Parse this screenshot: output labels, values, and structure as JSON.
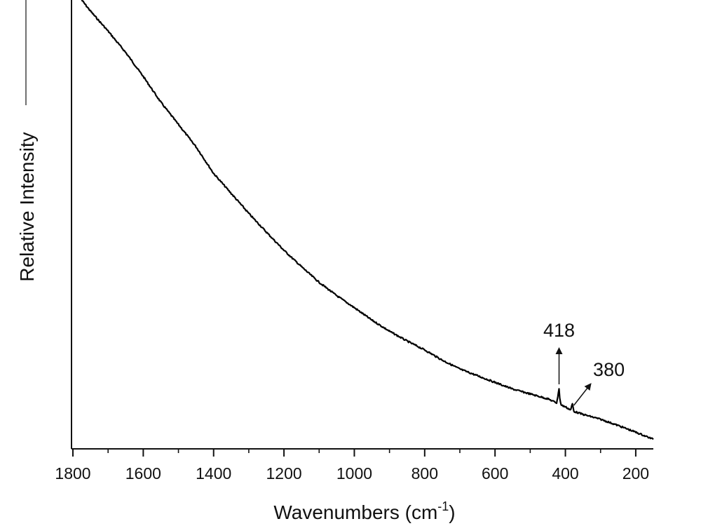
{
  "chart_data": {
    "type": "line",
    "xlabel_main": "Wavenumbers (cm",
    "xlabel_sup": "-1",
    "xlabel_close": ")",
    "ylabel": "Relative Intensity",
    "xlim": [
      1800,
      150
    ],
    "x_reversed": true,
    "x_ticks": [
      {
        "value": 1800,
        "label": "1800"
      },
      {
        "value": 1600,
        "label": "1600"
      },
      {
        "value": 1400,
        "label": "1400"
      },
      {
        "value": 1200,
        "label": "1200"
      },
      {
        "value": 1000,
        "label": "1000"
      },
      {
        "value": 800,
        "label": "800"
      },
      {
        "value": 600,
        "label": "600"
      },
      {
        "value": 400,
        "label": "400"
      },
      {
        "value": 200,
        "label": "200"
      }
    ],
    "x_minor_ticks": [
      1700,
      1500,
      1300,
      1100,
      900,
      700,
      500,
      300
    ],
    "series": [
      {
        "color": "#000000",
        "points": [
          [
            1775,
            1.0
          ],
          [
            1750,
            0.975
          ],
          [
            1700,
            0.93
          ],
          [
            1650,
            0.882
          ],
          [
            1600,
            0.828
          ],
          [
            1550,
            0.77
          ],
          [
            1500,
            0.72
          ],
          [
            1450,
            0.67
          ],
          [
            1400,
            0.61
          ],
          [
            1350,
            0.565
          ],
          [
            1300,
            0.52
          ],
          [
            1250,
            0.478
          ],
          [
            1200,
            0.437
          ],
          [
            1150,
            0.4
          ],
          [
            1100,
            0.365
          ],
          [
            1050,
            0.335
          ],
          [
            1000,
            0.308
          ],
          [
            950,
            0.28
          ],
          [
            900,
            0.255
          ],
          [
            850,
            0.233
          ],
          [
            800,
            0.213
          ],
          [
            750,
            0.19
          ],
          [
            700,
            0.17
          ],
          [
            650,
            0.155
          ],
          [
            600,
            0.14
          ],
          [
            550,
            0.125
          ],
          [
            500,
            0.114
          ],
          [
            450,
            0.103
          ],
          [
            425,
            0.094
          ],
          [
            420,
            0.115
          ],
          [
            418,
            0.127
          ],
          [
            416,
            0.105
          ],
          [
            412,
            0.089
          ],
          [
            400,
            0.085
          ],
          [
            385,
            0.078
          ],
          [
            380,
            0.092
          ],
          [
            376,
            0.075
          ],
          [
            350,
            0.068
          ],
          [
            300,
            0.057
          ],
          [
            250,
            0.043
          ],
          [
            200,
            0.028
          ],
          [
            150,
            0.012
          ]
        ]
      }
    ],
    "annotations": [
      {
        "label": "418",
        "x": 418,
        "arrow": "vertical"
      },
      {
        "label": "380",
        "x": 380,
        "arrow": "diagonal"
      }
    ]
  }
}
